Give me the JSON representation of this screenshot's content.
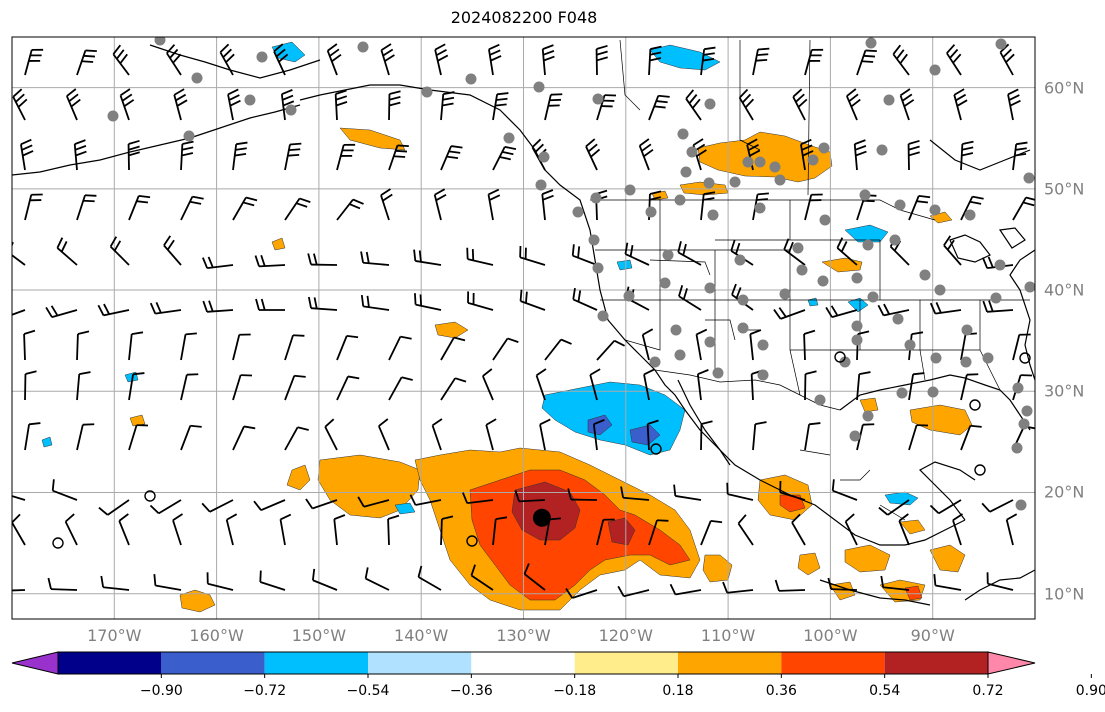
{
  "title": "2024082200 F048",
  "map": {
    "extent_lon": [
      -180,
      -80
    ],
    "extent_lat": [
      7.5,
      65
    ],
    "gridlines": true,
    "lon_labels": [
      "170°W",
      "160°W",
      "150°W",
      "140°W",
      "130°W",
      "120°W",
      "110°W",
      "100°W",
      "90°W"
    ],
    "lon_values": [
      -170,
      -160,
      -150,
      -140,
      -130,
      -120,
      -110,
      -100,
      -90
    ],
    "lat_labels": [
      "60°N",
      "50°N",
      "40°N",
      "30°N",
      "20°N",
      "10°N"
    ],
    "lat_values": [
      60,
      50,
      40,
      30,
      20,
      10
    ],
    "features": [
      "coastlines",
      "country borders",
      "US state borders",
      "wind barbs",
      "station dots",
      "filled contours"
    ],
    "center_marker": {
      "lon": -128.2,
      "lat": 17.5
    }
  },
  "colorbar": {
    "ticks": [
      "−0.90",
      "−0.72",
      "−0.54",
      "−0.36",
      "−0.18",
      "0.18",
      "0.36",
      "0.54",
      "0.72",
      "0.90"
    ],
    "colors": [
      "#9932cc",
      "#00008b",
      "#3a5fcd",
      "#00bfff",
      "#b0e2ff",
      "#ffffff",
      "#ffec8b",
      "#ffa500",
      "#ff4500",
      "#b22222",
      "#ff88aa"
    ],
    "extend": "both"
  }
}
